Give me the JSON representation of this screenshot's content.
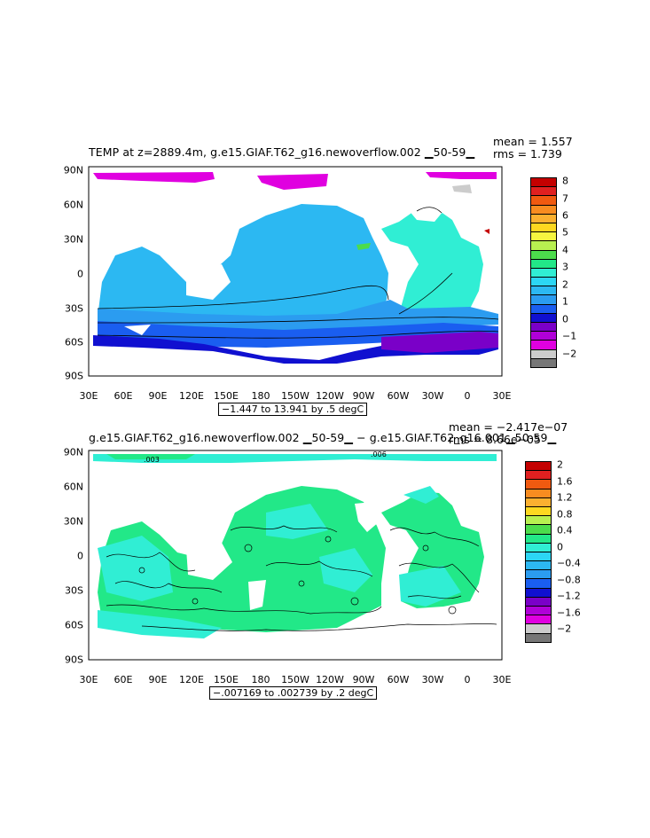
{
  "panels": [
    {
      "title": "TEMP at z=2889.4m, g.e15.GIAF.T62_g16.newoverflow.002 ▁50-59▁",
      "mean_text": "mean = 1.557",
      "rms_text": "rms = 1.739",
      "range_text": "−1.447 to 13.941 by .5 degC",
      "x_ticks": [
        "30E",
        "60E",
        "90E",
        "120E",
        "150E",
        "180",
        "150W",
        "120W",
        "90W",
        "60W",
        "30W",
        "0",
        "30E"
      ],
      "y_ticks": [
        "90N",
        "60N",
        "30N",
        "0",
        "30S",
        "60S",
        "90S"
      ],
      "colorbar": {
        "labels": [
          "8",
          "7",
          "6",
          "5",
          "4",
          "3",
          "2",
          "1",
          "0",
          "−1",
          "−2"
        ],
        "colors": [
          "#c40000",
          "#e02020",
          "#f05a10",
          "#f88c20",
          "#fbb030",
          "#fdd820",
          "#f6f640",
          "#b8f050",
          "#4cdc4c",
          "#22e888",
          "#30eed4",
          "#2cd6f4",
          "#2cb8f2",
          "#2b9cf0",
          "#1a5ef0",
          "#1010d0",
          "#7a00c8",
          "#b000d8",
          "#e000e0",
          "#cccccc",
          "#777777"
        ]
      },
      "contour_labels": []
    },
    {
      "title": "g.e15.GIAF.T62_g16.newoverflow.002 ▁50-59▁ − g.e15.GIAF.T62_g16.001▁50-59▁",
      "mean_text": "mean = −2.417e−07",
      "rms_text": "rms = 8.66e−05",
      "range_text": "−.007169 to .002739 by .2 degC",
      "x_ticks": [
        "30E",
        "60E",
        "90E",
        "120E",
        "150E",
        "180",
        "150W",
        "120W",
        "90W",
        "60W",
        "30W",
        "0",
        "30E"
      ],
      "y_ticks": [
        "90N",
        "60N",
        "30N",
        "0",
        "30S",
        "60S",
        "90S"
      ],
      "colorbar": {
        "labels": [
          "2",
          "1.6",
          "1.2",
          "0.8",
          "0.4",
          "0",
          "−0.4",
          "−0.8",
          "−1.2",
          "−1.6",
          "−2"
        ],
        "colors": [
          "#c40000",
          "#e02020",
          "#f05a10",
          "#f88c20",
          "#fbb030",
          "#fdd820",
          "#b8f050",
          "#4cdc4c",
          "#22e888",
          "#30eed4",
          "#2cd6f4",
          "#2cb8f2",
          "#2b9cf0",
          "#1a5ef0",
          "#1010d0",
          "#7a00c8",
          "#b000d8",
          "#e000e0",
          "#cccccc",
          "#777777"
        ]
      },
      "contour_labels": [
        ".003",
        ".006"
      ]
    }
  ]
}
